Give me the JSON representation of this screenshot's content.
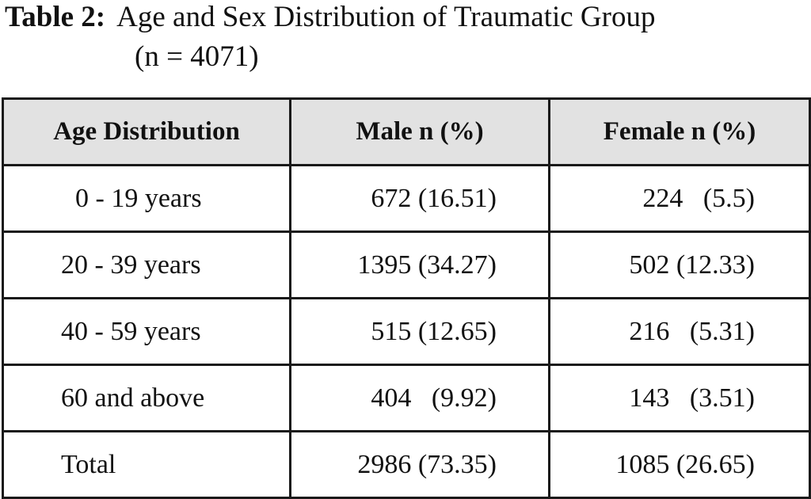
{
  "caption": {
    "label": "Table 2:",
    "title_line1": "Age and Sex Distribution of Traumatic Group",
    "title_line2": "(n = 4071)"
  },
  "table": {
    "headers": [
      "Age Distribution",
      "Male n (%)",
      "Female n (%)"
    ],
    "rows": [
      {
        "age": "0 - 19 years",
        "male": "672 (16.51)",
        "female": "224   (5.5)"
      },
      {
        "age": "20 - 39 years",
        "male": "1395 (34.27)",
        "female": "502 (12.33)"
      },
      {
        "age": "40 - 59 years",
        "male": "515 (12.65)",
        "female": "216   (5.31)"
      },
      {
        "age": "60 and above",
        "male": "404   (9.92)",
        "female": "143   (3.51)"
      },
      {
        "age": "Total",
        "male": "2986 (73.35)",
        "female": "1085 (26.65)"
      }
    ]
  },
  "colors": {
    "header_background": "#e2e2e2",
    "border": "#1a1a1a",
    "text": "#111111"
  }
}
